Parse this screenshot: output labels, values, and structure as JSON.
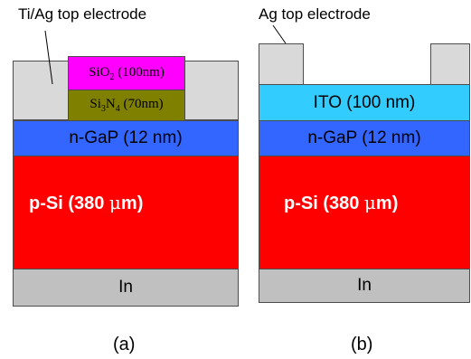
{
  "panel_a": {
    "electrode_label": "Ti/Ag top electrode",
    "sio2": {
      "main": "SiO",
      "sub": "2",
      "rest": " (100nm)"
    },
    "si3n4": {
      "main1": "Si",
      "sub1": "3",
      "main2": "N",
      "sub2": "4",
      "rest": " (70nm)"
    },
    "gap": "n-GaP (12 nm)",
    "psi": {
      "prefix": "p-Si (380 ",
      "mu": "μ",
      "suffix": "m)"
    },
    "in": "In",
    "caption": "(a)"
  },
  "panel_b": {
    "electrode_label": "Ag top electrode",
    "ito": "ITO (100 nm)",
    "gap": "n-GaP (12 nm)",
    "psi": {
      "prefix": "p-Si (380 ",
      "mu": "μ",
      "suffix": "m)"
    },
    "in": "In",
    "caption": "(b)"
  },
  "colors": {
    "electrode": "#d9d9d9",
    "sio2": "#ff00ff",
    "si3n4": "#808000",
    "gap": "#3366ff",
    "psi": "#ff0000",
    "ito": "#33ccff",
    "in": "#c0c0c0",
    "border": "#4d4d4d"
  }
}
